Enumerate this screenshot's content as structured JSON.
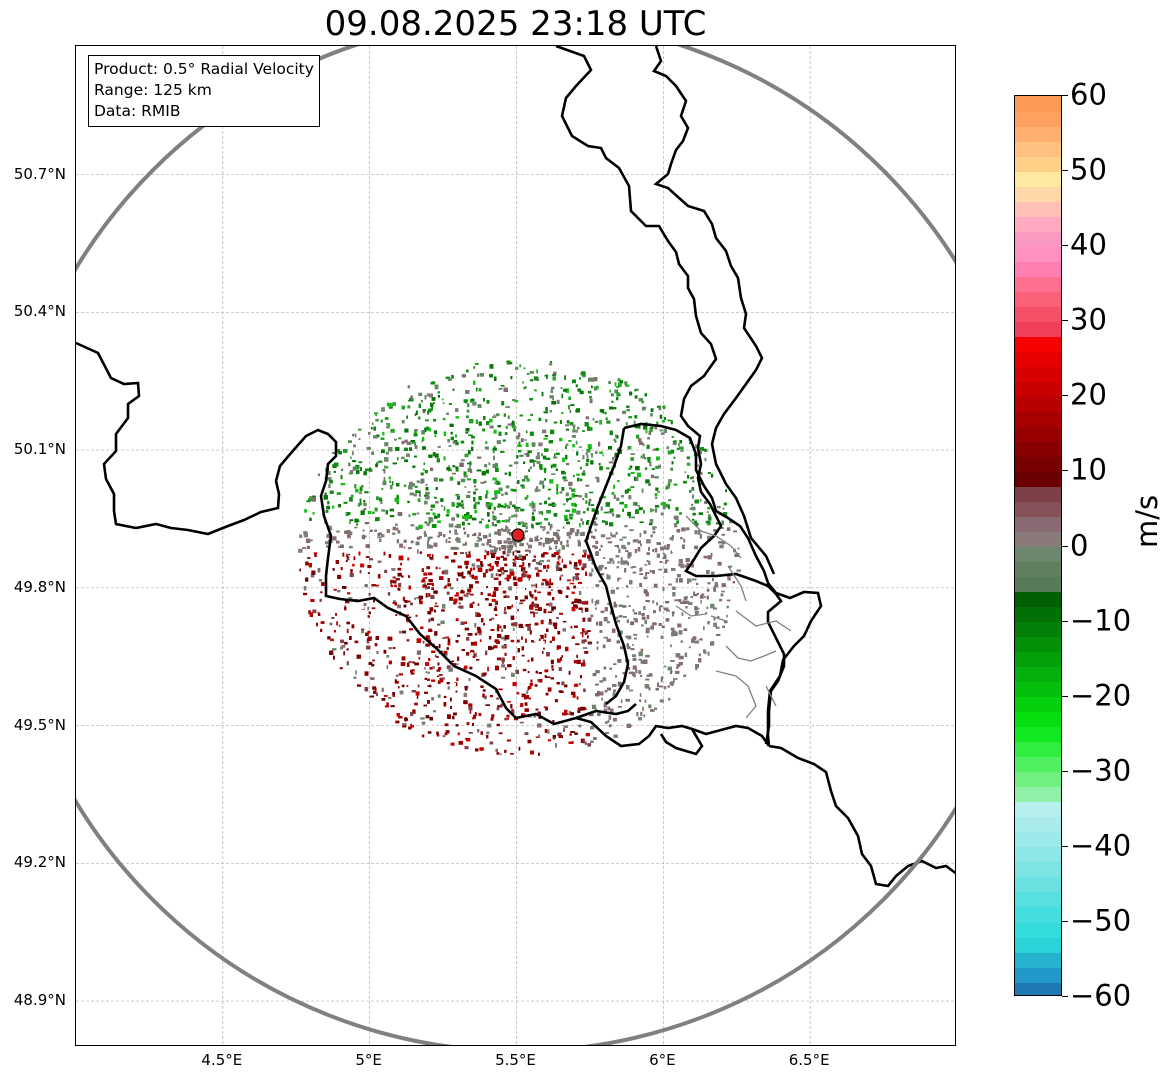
{
  "title": "09.08.2025 23:18 UTC",
  "info": {
    "product": "Product: 0.5° Radial Velocity",
    "range": "Range: 125 km",
    "source": "Data: RMIB"
  },
  "map": {
    "lat_range": [
      48.8,
      50.98
    ],
    "lon_range": [
      4.0,
      7.0
    ],
    "radar_site": {
      "lon": 5.505,
      "lat": 49.915
    },
    "radar_range_km": 125,
    "lat_ticks": [
      {
        "value": 50.7,
        "label": "50.7°N"
      },
      {
        "value": 50.4,
        "label": "50.4°N"
      },
      {
        "value": 50.1,
        "label": "50.1°N"
      },
      {
        "value": 49.8,
        "label": "49.8°N"
      },
      {
        "value": 49.5,
        "label": "49.5°N"
      },
      {
        "value": 49.2,
        "label": "49.2°N"
      },
      {
        "value": 48.9,
        "label": "48.9°N"
      }
    ],
    "lon_ticks": [
      {
        "value": 4.5,
        "label": "4.5°E"
      },
      {
        "value": 5.0,
        "label": "5°E"
      },
      {
        "value": 5.5,
        "label": "5.5°E"
      },
      {
        "value": 6.0,
        "label": "6°E"
      },
      {
        "value": 6.5,
        "label": "6.5°E"
      }
    ],
    "colors": {
      "range_ring": "#808080",
      "border": "#000000",
      "sub_border": "#808080",
      "grid": "#b0b0b0",
      "radar_marker": "#e02020",
      "inbound_green": "#0a7a0a",
      "outbound_red": "#7a0000",
      "near_zero": "#7a7a7a"
    }
  },
  "colorbar": {
    "unit": "m/s",
    "min": -60,
    "max": 60,
    "ticks": [
      {
        "value": 60,
        "label": "60"
      },
      {
        "value": 50,
        "label": "50"
      },
      {
        "value": 40,
        "label": "40"
      },
      {
        "value": 30,
        "label": "30"
      },
      {
        "value": 20,
        "label": "20"
      },
      {
        "value": 10,
        "label": "10"
      },
      {
        "value": 0,
        "label": "0"
      },
      {
        "value": -10,
        "label": "−10"
      },
      {
        "value": -20,
        "label": "−20"
      },
      {
        "value": -30,
        "label": "−30"
      },
      {
        "value": -40,
        "label": "−40"
      },
      {
        "value": -50,
        "label": "−50"
      },
      {
        "value": -60,
        "label": "−60"
      }
    ],
    "stops": [
      {
        "from": -60,
        "to": -58,
        "color": "#1f77b4"
      },
      {
        "from": -58,
        "to": -56,
        "color": "#2299c9"
      },
      {
        "from": -56,
        "to": -54,
        "color": "#25b3d0"
      },
      {
        "from": -54,
        "to": -52,
        "color": "#2bd3d8"
      },
      {
        "from": -52,
        "to": -50,
        "color": "#34dcdc"
      },
      {
        "from": -50,
        "to": -48,
        "color": "#44dede"
      },
      {
        "from": -48,
        "to": -46,
        "color": "#58e0e0"
      },
      {
        "from": -46,
        "to": -44,
        "color": "#6ae2e2"
      },
      {
        "from": -44,
        "to": -42,
        "color": "#7de4e4"
      },
      {
        "from": -42,
        "to": -40,
        "color": "#8ee7e7"
      },
      {
        "from": -40,
        "to": -38,
        "color": "#9ce9e9"
      },
      {
        "from": -38,
        "to": -36,
        "color": "#aaecec"
      },
      {
        "from": -36,
        "to": -34,
        "color": "#b7eeee"
      },
      {
        "from": -34,
        "to": -32,
        "color": "#90f0a8"
      },
      {
        "from": -32,
        "to": -30,
        "color": "#70f080"
      },
      {
        "from": -30,
        "to": -28,
        "color": "#50f060"
      },
      {
        "from": -28,
        "to": -26,
        "color": "#30ee40"
      },
      {
        "from": -26,
        "to": -24,
        "color": "#10e820"
      },
      {
        "from": -24,
        "to": -22,
        "color": "#05df10"
      },
      {
        "from": -22,
        "to": -20,
        "color": "#04d00e"
      },
      {
        "from": -20,
        "to": -18,
        "color": "#04c00c"
      },
      {
        "from": -18,
        "to": -16,
        "color": "#04b00b"
      },
      {
        "from": -16,
        "to": -14,
        "color": "#03a00a"
      },
      {
        "from": -14,
        "to": -12,
        "color": "#039009"
      },
      {
        "from": -12,
        "to": -10,
        "color": "#028008"
      },
      {
        "from": -10,
        "to": -8,
        "color": "#027007"
      },
      {
        "from": -8,
        "to": -6,
        "color": "#016006"
      },
      {
        "from": -6,
        "to": -4,
        "color": "#587a58"
      },
      {
        "from": -4,
        "to": -2,
        "color": "#5f7f5f"
      },
      {
        "from": -2,
        "to": 0,
        "color": "#6f876f"
      },
      {
        "from": 0,
        "to": 2,
        "color": "#8a7a7a"
      },
      {
        "from": 2,
        "to": 4,
        "color": "#8a6a72"
      },
      {
        "from": 4,
        "to": 6,
        "color": "#85525a"
      },
      {
        "from": 6,
        "to": 8,
        "color": "#7e4048"
      },
      {
        "from": 8,
        "to": 10,
        "color": "#6a0000"
      },
      {
        "from": 10,
        "to": 12,
        "color": "#780000"
      },
      {
        "from": 12,
        "to": 14,
        "color": "#880000"
      },
      {
        "from": 14,
        "to": 16,
        "color": "#980000"
      },
      {
        "from": 16,
        "to": 18,
        "color": "#a80000"
      },
      {
        "from": 18,
        "to": 20,
        "color": "#b80000"
      },
      {
        "from": 20,
        "to": 22,
        "color": "#c80000"
      },
      {
        "from": 22,
        "to": 24,
        "color": "#d80000"
      },
      {
        "from": 24,
        "to": 26,
        "color": "#e80000"
      },
      {
        "from": 26,
        "to": 28,
        "color": "#f80000"
      },
      {
        "from": 28,
        "to": 30,
        "color": "#f0405a"
      },
      {
        "from": 30,
        "to": 32,
        "color": "#f55068"
      },
      {
        "from": 32,
        "to": 34,
        "color": "#fa6078"
      },
      {
        "from": 34,
        "to": 36,
        "color": "#fd7090"
      },
      {
        "from": 36,
        "to": 38,
        "color": "#ff80b0"
      },
      {
        "from": 38,
        "to": 40,
        "color": "#ff90c0"
      },
      {
        "from": 40,
        "to": 42,
        "color": "#fa9ac0"
      },
      {
        "from": 42,
        "to": 44,
        "color": "#ffaac0"
      },
      {
        "from": 44,
        "to": 46,
        "color": "#ffc0b8"
      },
      {
        "from": 46,
        "to": 48,
        "color": "#ffd8a8"
      },
      {
        "from": 48,
        "to": 50,
        "color": "#ffe8a0"
      },
      {
        "from": 50,
        "to": 52,
        "color": "#ffd088"
      },
      {
        "from": 52,
        "to": 54,
        "color": "#ffc080"
      },
      {
        "from": 54,
        "to": 56,
        "color": "#ffb070"
      },
      {
        "from": 56,
        "to": 58,
        "color": "#ffa060"
      },
      {
        "from": 58,
        "to": 60,
        "color": "#ff9a55"
      }
    ]
  }
}
